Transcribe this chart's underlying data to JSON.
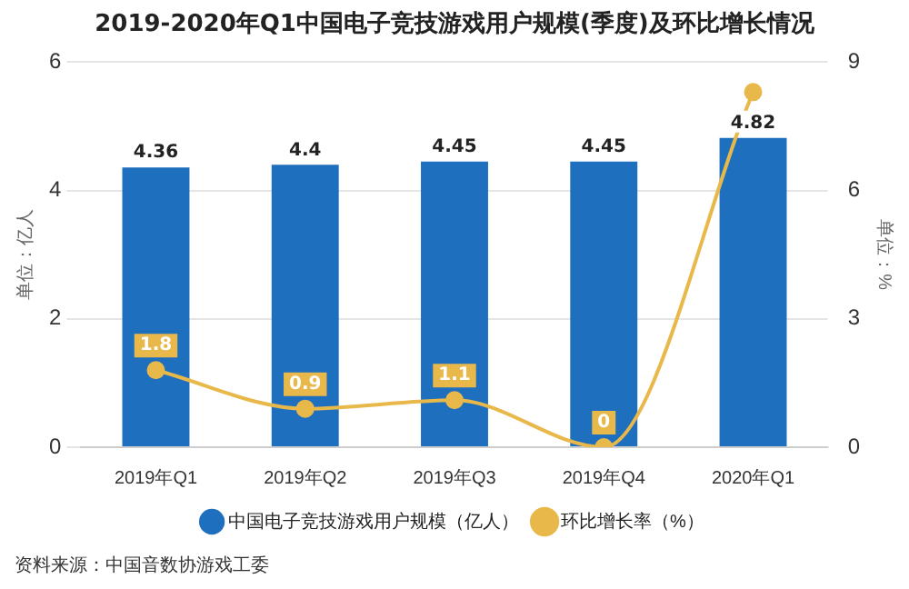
{
  "chart_data": {
    "type": "bar",
    "title": "2019-2020年Q1中国电子竞技游戏用户规模(季度)及环比增长情况",
    "ylabel": "单位：亿人",
    "y2label": "单位：%",
    "categories": [
      "2019年Q1",
      "2019年Q2",
      "2019年Q3",
      "2019年Q4",
      "2020年Q1"
    ],
    "series": [
      {
        "name": "中国电子竞技游戏用户规模（亿人）",
        "color": "#1f6fbf",
        "values": [
          4.36,
          4.4,
          4.45,
          4.45,
          4.82
        ],
        "value_labels": [
          "4.36",
          "4.4",
          "4.45",
          "4.45",
          "4.82"
        ]
      },
      {
        "name": "环比增长率（%）",
        "type": "line",
        "axis": "y2",
        "color": "#e8b84a",
        "values": [
          1.8,
          0.9,
          1.1,
          0,
          8.3
        ],
        "value_labels": [
          "1.8",
          "0.9",
          "1.1",
          "0",
          null
        ]
      }
    ],
    "ylim": [
      0,
      6
    ],
    "yticks": [
      0,
      2,
      4,
      6
    ],
    "y2lim": [
      0,
      9
    ],
    "y2ticks": [
      0,
      3,
      6,
      9
    ],
    "grid": "y",
    "legend": "bottom",
    "marker": "circle",
    "annotations": [
      "资料来源：中国音数协游戏工委"
    ]
  }
}
